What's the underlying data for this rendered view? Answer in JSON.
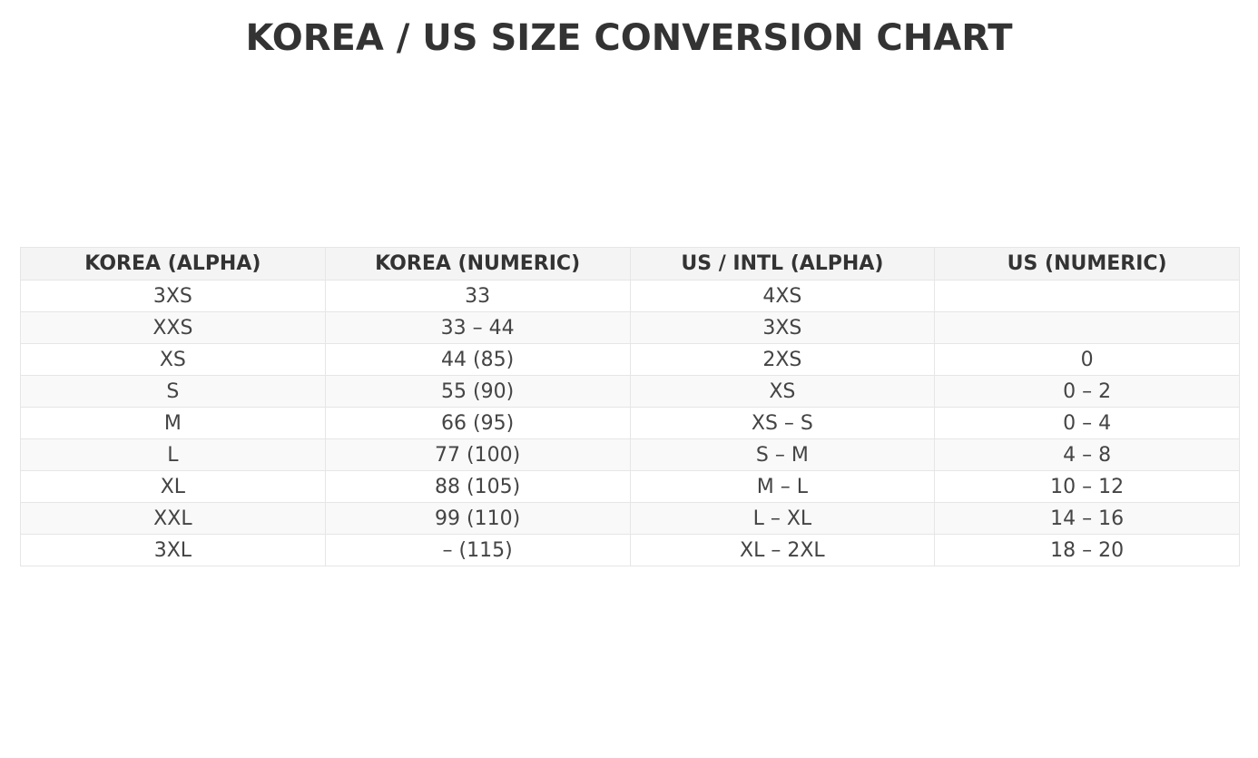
{
  "title": "KOREA / US SIZE CONVERSION CHART",
  "table": {
    "headers": [
      "KOREA (ALPHA)",
      "KOREA (NUMERIC)",
      "US / INTL (ALPHA)",
      "US (NUMERIC)"
    ],
    "rows": [
      [
        "3XS",
        "33",
        "4XS",
        ""
      ],
      [
        "XXS",
        "33 – 44",
        "3XS",
        ""
      ],
      [
        "XS",
        "44 (85)",
        "2XS",
        "0"
      ],
      [
        "S",
        "55 (90)",
        "XS",
        "0 – 2"
      ],
      [
        "M",
        "66 (95)",
        "XS – S",
        "0 – 4"
      ],
      [
        "L",
        "77 (100)",
        "S – M",
        "4 – 8"
      ],
      [
        "XL",
        "88 (105)",
        "M – L",
        "10 – 12"
      ],
      [
        "XXL",
        "99 (110)",
        "L – XL",
        "14 – 16"
      ],
      [
        "3XL",
        "– (115)",
        "XL – 2XL",
        "18 – 20"
      ]
    ]
  }
}
